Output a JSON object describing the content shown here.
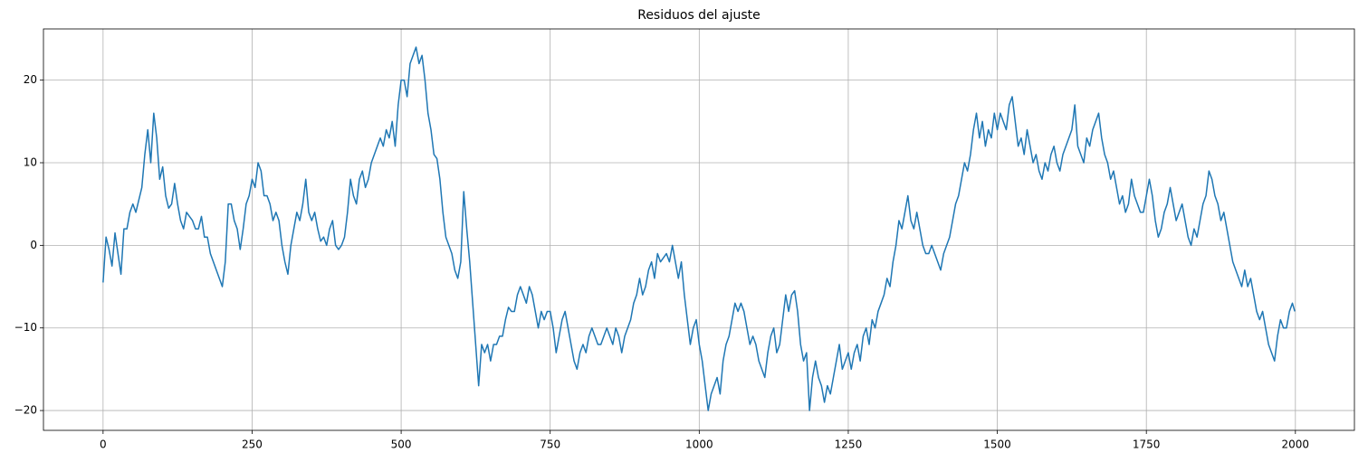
{
  "chart_data": {
    "type": "line",
    "title": "Residuos del ajuste",
    "x": [
      0,
      5,
      10,
      15,
      20,
      25,
      30,
      35,
      40,
      45,
      50,
      55,
      60,
      65,
      70,
      75,
      80,
      85,
      90,
      95,
      100,
      105,
      110,
      115,
      120,
      125,
      130,
      135,
      140,
      145,
      150,
      155,
      160,
      165,
      170,
      175,
      180,
      185,
      190,
      195,
      200,
      205,
      210,
      215,
      220,
      225,
      230,
      235,
      240,
      245,
      250,
      255,
      260,
      265,
      270,
      275,
      280,
      285,
      290,
      295,
      300,
      305,
      310,
      315,
      320,
      325,
      330,
      335,
      340,
      345,
      350,
      355,
      360,
      365,
      370,
      375,
      380,
      385,
      390,
      395,
      400,
      405,
      410,
      415,
      420,
      425,
      430,
      435,
      440,
      445,
      450,
      455,
      460,
      465,
      470,
      475,
      480,
      485,
      490,
      495,
      500,
      505,
      510,
      515,
      520,
      525,
      530,
      535,
      540,
      545,
      550,
      555,
      560,
      565,
      570,
      575,
      580,
      585,
      590,
      595,
      600,
      605,
      610,
      615,
      620,
      625,
      630,
      635,
      640,
      645,
      650,
      655,
      660,
      665,
      670,
      675,
      680,
      685,
      690,
      695,
      700,
      705,
      710,
      715,
      720,
      725,
      730,
      735,
      740,
      745,
      750,
      755,
      760,
      765,
      770,
      775,
      780,
      785,
      790,
      795,
      800,
      805,
      810,
      815,
      820,
      825,
      830,
      835,
      840,
      845,
      850,
      855,
      860,
      865,
      870,
      875,
      880,
      885,
      890,
      895,
      900,
      905,
      910,
      915,
      920,
      925,
      930,
      935,
      940,
      945,
      950,
      955,
      960,
      965,
      970,
      975,
      980,
      985,
      990,
      995,
      1000,
      1005,
      1010,
      1015,
      1020,
      1025,
      1030,
      1035,
      1040,
      1045,
      1050,
      1055,
      1060,
      1065,
      1070,
      1075,
      1080,
      1085,
      1090,
      1095,
      1100,
      1105,
      1110,
      1115,
      1120,
      1125,
      1130,
      1135,
      1140,
      1145,
      1150,
      1155,
      1160,
      1165,
      1170,
      1175,
      1180,
      1185,
      1190,
      1195,
      1200,
      1205,
      1210,
      1215,
      1220,
      1225,
      1230,
      1235,
      1240,
      1245,
      1250,
      1255,
      1260,
      1265,
      1270,
      1275,
      1280,
      1285,
      1290,
      1295,
      1300,
      1305,
      1310,
      1315,
      1320,
      1325,
      1330,
      1335,
      1340,
      1345,
      1350,
      1355,
      1360,
      1365,
      1370,
      1375,
      1380,
      1385,
      1390,
      1395,
      1400,
      1405,
      1410,
      1415,
      1420,
      1425,
      1430,
      1435,
      1440,
      1445,
      1450,
      1455,
      1460,
      1465,
      1470,
      1475,
      1480,
      1485,
      1490,
      1495,
      1500,
      1505,
      1510,
      1515,
      1520,
      1525,
      1530,
      1535,
      1540,
      1545,
      1550,
      1555,
      1560,
      1565,
      1570,
      1575,
      1580,
      1585,
      1590,
      1595,
      1600,
      1605,
      1610,
      1615,
      1620,
      1625,
      1630,
      1635,
      1640,
      1645,
      1650,
      1655,
      1660,
      1665,
      1670,
      1675,
      1680,
      1685,
      1690,
      1695,
      1700,
      1705,
      1710,
      1715,
      1720,
      1725,
      1730,
      1735,
      1740,
      1745,
      1750,
      1755,
      1760,
      1765,
      1770,
      1775,
      1780,
      1785,
      1790,
      1795,
      1800,
      1805,
      1810,
      1815,
      1820,
      1825,
      1830,
      1835,
      1840,
      1845,
      1850,
      1855,
      1860,
      1865,
      1870,
      1875,
      1880,
      1885,
      1890,
      1895,
      1900,
      1905,
      1910,
      1915,
      1920,
      1925,
      1930,
      1935,
      1940,
      1945,
      1950,
      1955,
      1960,
      1965,
      1970,
      1975,
      1980,
      1985,
      1990,
      1995,
      1999
    ],
    "values": [
      -4.5,
      1,
      -0.5,
      -2.5,
      1.5,
      -1,
      -3.5,
      2,
      2,
      4,
      5,
      4,
      5.5,
      7,
      11,
      14,
      10,
      16,
      13,
      8,
      9.5,
      6,
      4.5,
      5,
      7.5,
      5,
      3,
      2,
      4,
      3.5,
      3,
      2,
      2,
      3.5,
      1,
      1,
      -1,
      -2,
      -3,
      -4,
      -5,
      -2,
      5,
      5,
      3,
      2,
      -0.5,
      2,
      5,
      6,
      8,
      7,
      10,
      9,
      6,
      6,
      5,
      3,
      4,
      3,
      0,
      -2,
      -3.5,
      0,
      2,
      4,
      3,
      5,
      8,
      4,
      3,
      4,
      2,
      0.5,
      1,
      0,
      2,
      3,
      0,
      -0.5,
      0,
      1,
      4,
      8,
      6,
      5,
      8,
      9,
      7,
      8,
      10,
      11,
      12,
      13,
      12,
      14,
      13,
      15,
      12,
      17,
      20,
      20,
      18,
      22,
      23,
      24,
      22,
      23,
      20,
      16,
      14,
      11,
      10.5,
      8,
      4,
      1,
      0,
      -1,
      -3,
      -4,
      -2,
      6.5,
      2,
      -2,
      -7,
      -12,
      -17,
      -12,
      -13,
      -12,
      -14,
      -12,
      -12,
      -11,
      -11,
      -9,
      -7.5,
      -8,
      -8,
      -6,
      -5,
      -6,
      -7,
      -5,
      -6,
      -8,
      -10,
      -8,
      -9,
      -8,
      -8,
      -10,
      -13,
      -11,
      -9,
      -8,
      -10,
      -12,
      -14,
      -15,
      -13,
      -12,
      -13,
      -11,
      -10,
      -11,
      -12,
      -12,
      -11,
      -10,
      -11,
      -12,
      -10,
      -11,
      -13,
      -11,
      -10,
      -9,
      -7,
      -6,
      -4,
      -6,
      -5,
      -3,
      -2,
      -4,
      -1,
      -2,
      -1.5,
      -1,
      -2,
      0,
      -2,
      -4,
      -2,
      -6,
      -9,
      -12,
      -10,
      -9,
      -12,
      -14,
      -17,
      -20,
      -18,
      -17,
      -16,
      -18,
      -14,
      -12,
      -11,
      -9,
      -7,
      -8,
      -7,
      -8,
      -10,
      -12,
      -11,
      -12,
      -14,
      -15,
      -16,
      -13,
      -11,
      -10,
      -13,
      -12,
      -9,
      -6,
      -8,
      -6,
      -5.5,
      -8,
      -12,
      -14,
      -13,
      -20,
      -16,
      -14,
      -16,
      -17,
      -19,
      -17,
      -18,
      -16,
      -14,
      -12,
      -15,
      -14,
      -13,
      -15,
      -13,
      -12,
      -14,
      -11,
      -10,
      -12,
      -9,
      -10,
      -8,
      -7,
      -6,
      -4,
      -5,
      -2,
      0,
      3,
      2,
      4,
      6,
      3,
      2,
      4,
      2,
      0,
      -1,
      -1,
      0,
      -1,
      -2,
      -3,
      -1,
      0,
      1,
      3,
      5,
      6,
      8,
      10,
      9,
      11,
      14,
      16,
      13,
      15,
      12,
      14,
      13,
      16,
      14,
      16,
      15,
      14,
      17,
      18,
      15,
      12,
      13,
      11,
      14,
      12,
      10,
      11,
      9,
      8,
      10,
      9,
      11,
      12,
      10,
      9,
      11,
      12,
      13,
      14,
      17,
      12,
      11,
      10,
      13,
      12,
      14,
      15,
      16,
      13,
      11,
      10,
      8,
      9,
      7,
      5,
      6,
      4,
      5,
      8,
      6,
      5,
      4,
      4,
      6,
      8,
      6,
      3,
      1,
      2,
      4,
      5,
      7,
      5,
      3,
      4,
      5,
      3,
      1,
      0,
      2,
      1,
      3,
      5,
      6,
      9,
      8,
      6,
      5,
      3,
      4,
      2,
      0,
      -2,
      -3,
      -4,
      -5,
      -3,
      -5,
      -4,
      -6,
      -8,
      -9,
      -8,
      -10,
      -12,
      -13,
      -14,
      -11,
      -9,
      -10,
      -10,
      -8,
      -7,
      -8
    ],
    "color": "#1f77b4",
    "xlim": [
      -100,
      2099
    ],
    "ylim": [
      -22.4,
      26.2
    ],
    "xticks": [
      0,
      250,
      500,
      750,
      1000,
      1250,
      1500,
      1750,
      2000
    ],
    "yticks": [
      {
        "value": -20,
        "label": "−20"
      },
      {
        "value": -10,
        "label": "−10"
      },
      0,
      10,
      20
    ],
    "grid": true
  }
}
